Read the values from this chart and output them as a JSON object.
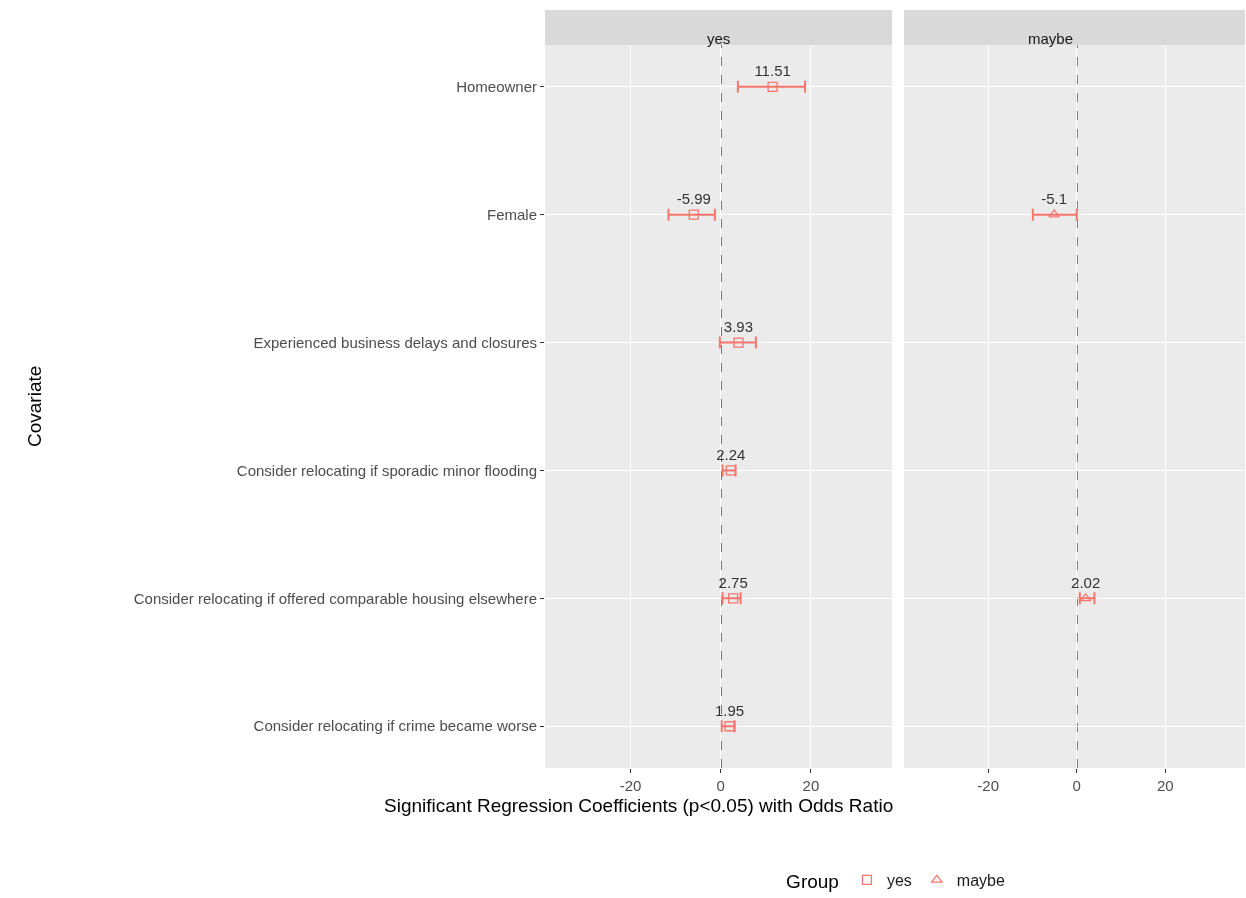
{
  "chart_data": [
    {
      "type": "scatter",
      "title": "yes",
      "orientation": "horizontal",
      "xlabel": "Significant Regression Coefficients (p<0.05) with Odds Ratio",
      "ylabel": "Covariate",
      "legend_title": "Group",
      "legend": "bottom",
      "categories": [
        "Homeowner",
        "Female",
        "Experienced business delays and closures",
        "Consider relocating if sporadic minor flooding",
        "Consider relocating if offered comparable housing elsewhere",
        "Consider relocating if crime became worse"
      ],
      "series": [
        {
          "name": "yes",
          "color": "#f8766d",
          "marker": "square",
          "values": [
            11.51,
            -5.99,
            3.93,
            2.24,
            2.75,
            1.95
          ],
          "errors": [
            [
              3.8,
              18.7
            ],
            [
              -11.6,
              -1.3
            ],
            [
              -0.2,
              7.8
            ],
            [
              0.4,
              3.3
            ],
            [
              0.4,
              4.4
            ],
            [
              0.2,
              3.1
            ]
          ]
        }
      ],
      "xlim": [
        -39,
        38
      ],
      "xticks": [
        -20,
        0,
        20
      ],
      "grid": true,
      "data_labels": true,
      "ref_lines": [
        {
          "axis": "x",
          "value": 0,
          "color": "#000000",
          "line_style": "dashed"
        }
      ]
    },
    {
      "type": "scatter",
      "title": "maybe",
      "orientation": "horizontal",
      "tick_labels": "x",
      "categories": [
        "Homeowner",
        "Female",
        "Experienced business delays and closures",
        "Consider relocating if sporadic minor flooding",
        "Consider relocating if offered comparable housing elsewhere",
        "Consider relocating if crime became worse"
      ],
      "series": [
        {
          "name": "maybe",
          "color": "#f8766d",
          "marker": "triangle",
          "values": [
            null,
            -5.1,
            null,
            null,
            2.02,
            null
          ],
          "errors": [
            null,
            [
              -9.9,
              0.0
            ],
            null,
            null,
            [
              0.7,
              4.0
            ],
            null
          ]
        }
      ],
      "xlim": [
        -39,
        38
      ],
      "xticks": [
        -20,
        0,
        20
      ],
      "grid": true,
      "data_labels": true,
      "ref_lines": [
        {
          "axis": "x",
          "value": 0,
          "color": "#000000",
          "line_style": "dashed"
        }
      ]
    }
  ]
}
